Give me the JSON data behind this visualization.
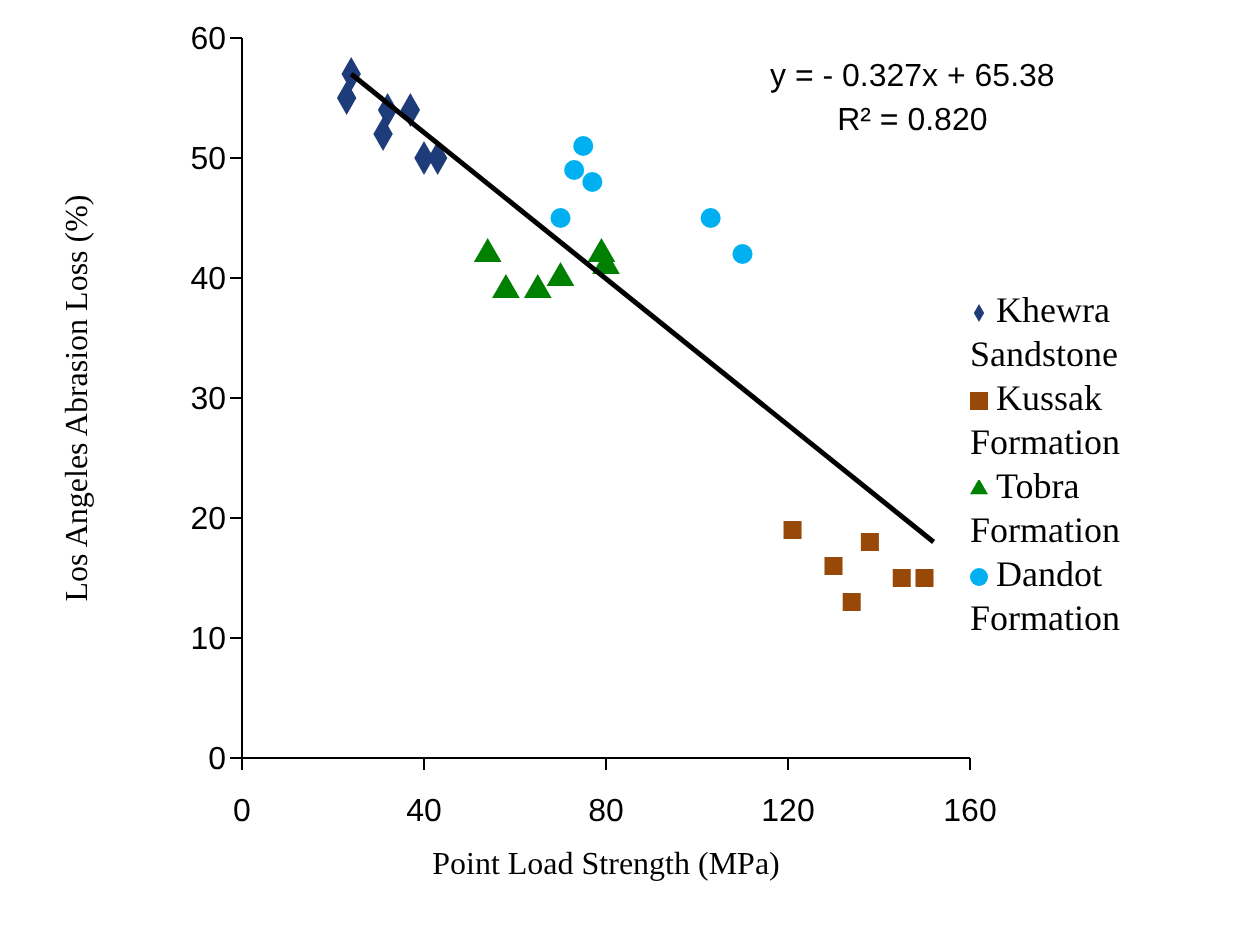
{
  "chart_data": {
    "type": "scatter",
    "xlabel": "Point Load Strength (MPa)",
    "ylabel": "Los Angeles Abrasion Loss (%)",
    "xlim": [
      0,
      160
    ],
    "xticks": [
      0,
      40,
      80,
      120,
      160
    ],
    "ylim": [
      0,
      60
    ],
    "yticks": [
      0,
      10,
      20,
      30,
      40,
      50,
      60
    ],
    "grid": false,
    "legend": "right",
    "annotations": [
      "y = - 0.327x + 65.38",
      "R² = 0.820"
    ],
    "series": [
      {
        "name": "Khewra Sandstone",
        "color": "#1f3c7a",
        "marker": "diamond",
        "x": [
          24,
          23,
          32,
          37,
          31,
          40,
          43
        ],
        "values": [
          57,
          55,
          54,
          54,
          52,
          50,
          50
        ]
      },
      {
        "name": "Kussak Formation",
        "color": "#984807",
        "marker": "square",
        "x": [
          121,
          138,
          130,
          134,
          145,
          150
        ],
        "values": [
          19,
          18,
          16,
          13,
          15,
          15
        ]
      },
      {
        "name": "Tobra Formation",
        "color": "#008000",
        "marker": "triangle",
        "x": [
          54,
          58,
          65,
          70,
          79,
          80
        ],
        "values": [
          42,
          39,
          39,
          40,
          42,
          41
        ]
      },
      {
        "name": "Dandot Formation",
        "color": "#00b0f0",
        "marker": "circle",
        "x": [
          75,
          73,
          77,
          70,
          103,
          110
        ],
        "values": [
          51,
          49,
          48,
          45,
          45,
          42
        ]
      },
      {
        "type": "line",
        "color": "#000000",
        "marker": "none",
        "x": [
          24,
          152
        ],
        "values": [
          57,
          18
        ]
      }
    ]
  }
}
